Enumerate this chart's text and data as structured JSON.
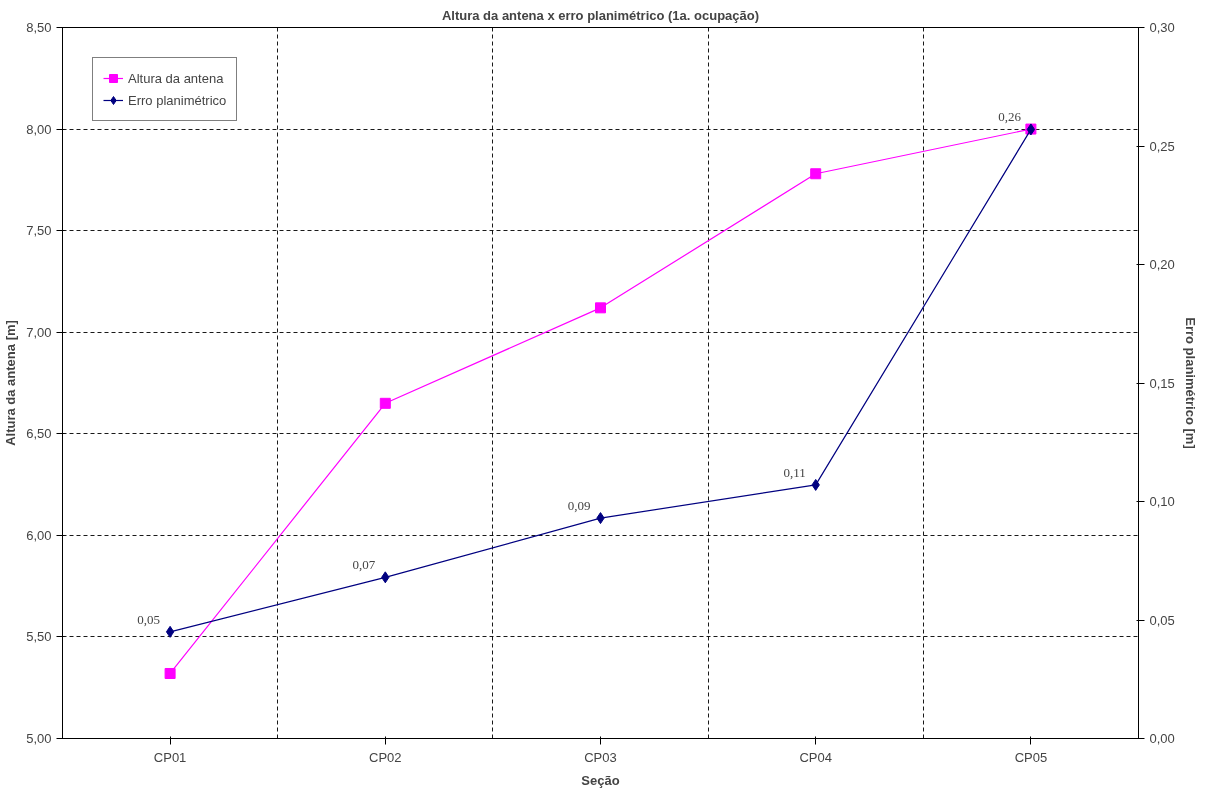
{
  "chart_data": {
    "type": "line",
    "title": "Altura da antena x erro planimétrico (1a. ocupação)",
    "xlabel": "Seção",
    "ylabel": "Altura da antena [m]",
    "y2label": "Erro planimétrico [m]",
    "categories": [
      "CP01",
      "CP02",
      "CP03",
      "CP04",
      "CP05"
    ],
    "series": [
      {
        "name": "Altura da antena",
        "color": "#ff00ff",
        "marker": "square",
        "values": [
          5.32,
          6.65,
          7.12,
          7.78,
          8.0
        ]
      },
      {
        "name": "Erro planimétrico",
        "color": "#000080",
        "marker": "diamond",
        "axis": "y2",
        "values": [
          0.045,
          0.068,
          0.093,
          0.107,
          0.257
        ],
        "value_labels": [
          "0,05",
          "0,07",
          "0,09",
          "0,11",
          "0,26"
        ]
      }
    ],
    "ylim": [
      5,
      8.5
    ],
    "yticks": [
      {
        "value": 5,
        "label": "5,00"
      },
      {
        "value": 5.5,
        "label": "5,50"
      },
      {
        "value": 6,
        "label": "6,00"
      },
      {
        "value": 6.5,
        "label": "6,50"
      },
      {
        "value": 7,
        "label": "7,00"
      },
      {
        "value": 7.5,
        "label": "7,50"
      },
      {
        "value": 8,
        "label": "8,00"
      },
      {
        "value": 8.5,
        "label": "8,50"
      }
    ],
    "y2lim": [
      0,
      0.3
    ],
    "y2ticks": [
      {
        "value": 0,
        "label": "0,00"
      },
      {
        "value": 0.05,
        "label": "0,05"
      },
      {
        "value": 0.1,
        "label": "0,10"
      },
      {
        "value": 0.15,
        "label": "0,15"
      },
      {
        "value": 0.2,
        "label": "0,20"
      },
      {
        "value": 0.25,
        "label": "0,25"
      },
      {
        "value": 0.3,
        "label": "0,30"
      }
    ],
    "grid": true,
    "line_style": "solid",
    "legend": "top left"
  }
}
